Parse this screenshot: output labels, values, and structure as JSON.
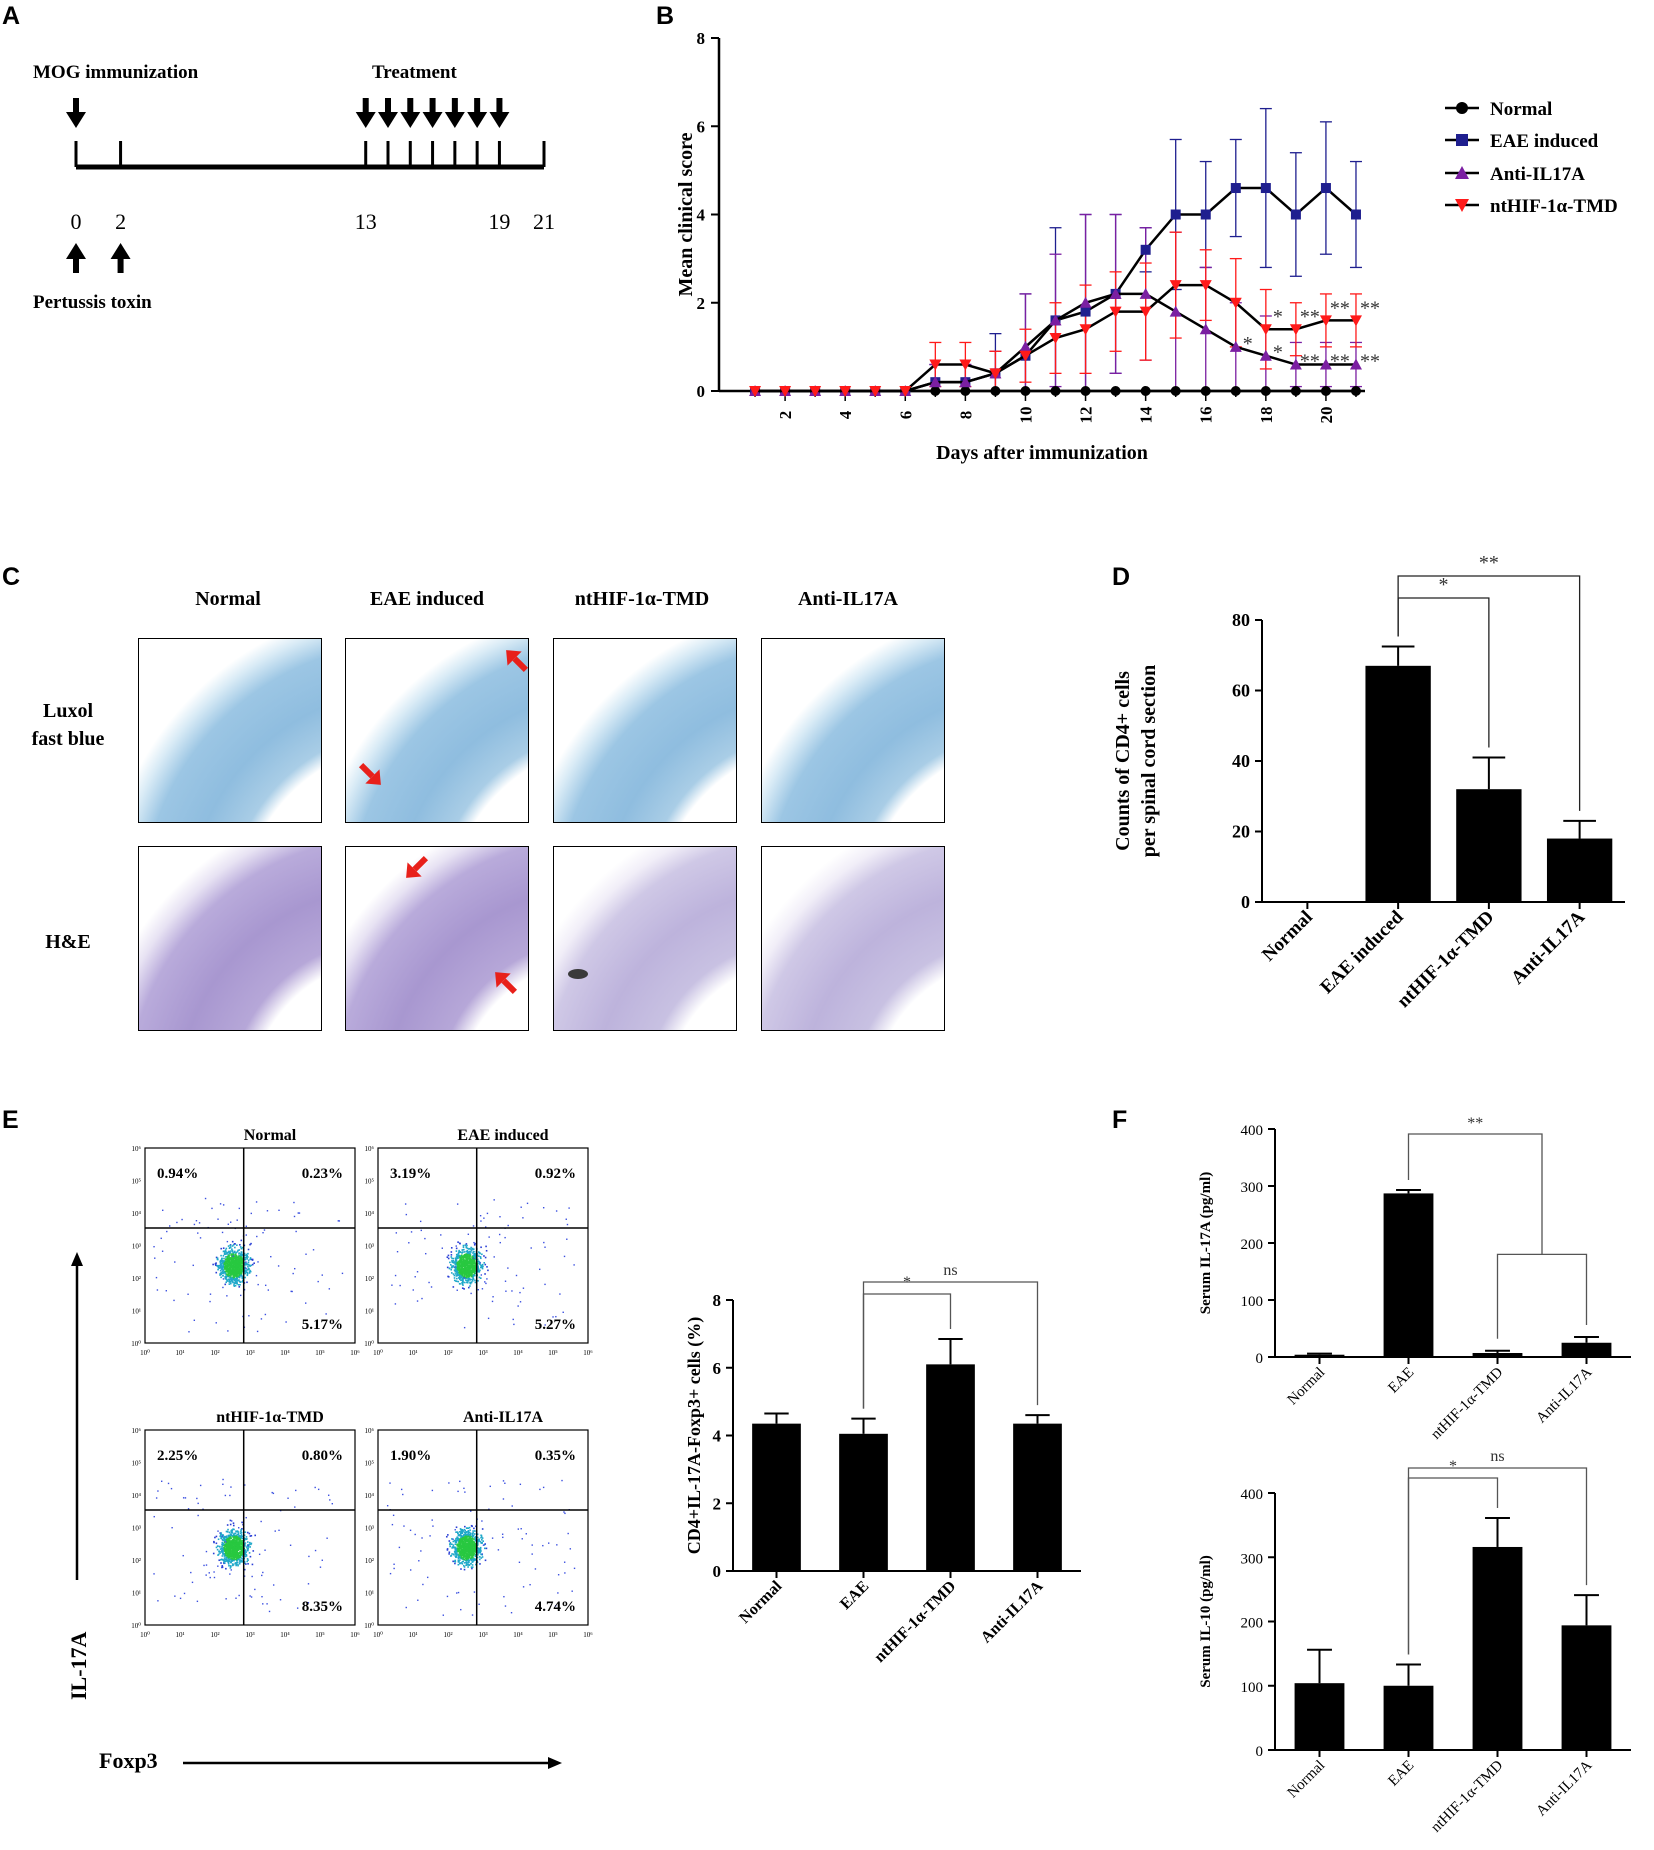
{
  "panel_labels": {
    "a": "A",
    "b": "B",
    "c": "C",
    "d": "D",
    "e": "E",
    "f": "F"
  },
  "timeline": {
    "mog_label": "MOG immunization",
    "treatment_label": "Treatment",
    "pertussis_label": "Pertussis toxin",
    "day_labels": [
      "0",
      "2",
      "13",
      "19",
      "21"
    ],
    "treatment_days": [
      13,
      14,
      15,
      16,
      17,
      18,
      19
    ],
    "pertussis_days": [
      0,
      2
    ]
  },
  "histology": {
    "columns": [
      "Normal",
      "EAE induced",
      "ntHIF-1α-TMD",
      "Anti-IL17A"
    ],
    "rows": [
      {
        "label_line1": "Luxol",
        "label_line2": "fast blue"
      },
      {
        "label_line1": "H&E",
        "label_line2": ""
      }
    ]
  },
  "flow": {
    "y_axis_label": "IL-17A",
    "x_axis_label": "Foxp3",
    "tick_labels": [
      "10⁰",
      "10¹",
      "10²",
      "10³",
      "10⁴",
      "10⁵",
      "10⁶"
    ],
    "plots": [
      {
        "title": "Normal",
        "ul": "0.94%",
        "ur": "0.23%",
        "lr": "5.17%"
      },
      {
        "title": "EAE induced",
        "ul": "3.19%",
        "ur": "0.92%",
        "lr": "5.27%"
      },
      {
        "title": "ntHIF-1α-TMD",
        "ul": "2.25%",
        "ur": "0.80%",
        "lr": "8.35%"
      },
      {
        "title": "Anti-IL17A",
        "ul": "1.90%",
        "ur": "0.35%",
        "lr": "4.74%"
      }
    ]
  },
  "colors": {
    "normal": "#000000",
    "eae": "#1f1f8f",
    "anti": "#7b1fa2",
    "nthif": "#ff1a1a"
  },
  "chart_data": [
    {
      "id": "B",
      "type": "line",
      "xlabel": "Days after immunization",
      "ylabel": "Mean clinical score",
      "ylim": [
        0,
        8
      ],
      "xlim": [
        0,
        21
      ],
      "x_ticks": [
        2,
        4,
        6,
        8,
        10,
        12,
        14,
        16,
        18,
        20
      ],
      "y_ticks": [
        0,
        2,
        4,
        6,
        8
      ],
      "x": [
        1,
        2,
        3,
        4,
        5,
        6,
        7,
        8,
        9,
        10,
        11,
        12,
        13,
        14,
        15,
        16,
        17,
        18,
        19,
        20,
        21
      ],
      "series": [
        {
          "name": "Normal",
          "marker": "circle",
          "values": [
            0,
            0,
            0,
            0,
            0,
            0,
            0,
            0,
            0,
            0,
            0,
            0,
            0,
            0,
            0,
            0,
            0,
            0,
            0,
            0,
            0
          ],
          "errors": [
            0,
            0,
            0,
            0,
            0,
            0,
            0,
            0,
            0,
            0,
            0,
            0,
            0,
            0,
            0,
            0,
            0,
            0,
            0,
            0,
            0
          ]
        },
        {
          "name": "EAE induced",
          "marker": "square",
          "values": [
            0,
            0,
            0,
            0,
            0,
            0,
            0.2,
            0.2,
            0.4,
            0.8,
            1.6,
            1.8,
            2.2,
            3.2,
            4.0,
            4.0,
            4.6,
            4.6,
            4.0,
            4.6,
            4.0
          ],
          "errors": [
            0,
            0,
            0,
            0,
            0,
            0,
            0.4,
            0.4,
            0.9,
            1.4,
            2.1,
            2.2,
            1.8,
            0.5,
            1.7,
            1.2,
            1.1,
            1.8,
            1.4,
            1.5,
            1.2
          ]
        },
        {
          "name": "Anti-IL17A",
          "marker": "triangle-up",
          "values": [
            0,
            0,
            0,
            0,
            0,
            0,
            0.2,
            0.2,
            0.4,
            1.0,
            1.6,
            2.0,
            2.2,
            2.2,
            1.8,
            1.4,
            1.0,
            0.8,
            0.6,
            0.6,
            0.6
          ],
          "errors": [
            0,
            0,
            0,
            0,
            0,
            0,
            0.4,
            0.4,
            0.5,
            1.2,
            1.5,
            2.0,
            1.8,
            1.5,
            1.8,
            1.4,
            1.0,
            0.9,
            0.5,
            0.5,
            0.5
          ]
        },
        {
          "name": "ntHIF-1α-TMD",
          "marker": "triangle-down",
          "values": [
            0,
            0,
            0,
            0,
            0,
            0,
            0.6,
            0.6,
            0.4,
            0.8,
            1.2,
            1.4,
            1.8,
            1.8,
            2.4,
            2.4,
            2.0,
            1.4,
            1.4,
            1.6,
            1.6
          ],
          "errors": [
            0,
            0,
            0,
            0,
            0,
            0,
            0.5,
            0.5,
            0.5,
            0.6,
            0.8,
            1.0,
            0.9,
            1.1,
            1.2,
            0.8,
            1.0,
            0.9,
            0.6,
            0.6,
            0.6
          ]
        }
      ],
      "annotations": [
        {
          "day": 17,
          "series": "Anti-IL17A",
          "text": "*"
        },
        {
          "day": 18,
          "series": "Anti-IL17A",
          "text": "*"
        },
        {
          "day": 19,
          "series": "Anti-IL17A",
          "text": "**"
        },
        {
          "day": 20,
          "series": "Anti-IL17A",
          "text": "**"
        },
        {
          "day": 21,
          "series": "Anti-IL17A",
          "text": "**"
        },
        {
          "day": 18,
          "series": "ntHIF-1α-TMD",
          "text": "*"
        },
        {
          "day": 19,
          "series": "ntHIF-1α-TMD",
          "text": "**"
        },
        {
          "day": 20,
          "series": "ntHIF-1α-TMD",
          "text": "**"
        },
        {
          "day": 21,
          "series": "ntHIF-1α-TMD",
          "text": "**"
        }
      ],
      "legend_position": "right"
    },
    {
      "id": "D",
      "type": "bar",
      "ylabel_line1": "Counts of CD4+ cells",
      "ylabel_line2": "per spinal cord section",
      "categories": [
        "Normal",
        "EAE induced",
        "ntHIF-1α-TMD",
        "Anti-IL17A"
      ],
      "values": [
        0,
        67,
        32,
        18
      ],
      "errors": [
        0,
        5.5,
        9,
        5
      ],
      "ylim": [
        0,
        80
      ],
      "y_ticks": [
        0,
        20,
        40,
        60,
        80
      ],
      "significance": [
        {
          "from": 1,
          "to": 2,
          "text": "*"
        },
        {
          "from": 1,
          "to": 3,
          "text": "**"
        }
      ]
    },
    {
      "id": "E-bar",
      "type": "bar",
      "ylabel": "CD4+IL-17A-Foxp3+ cells (%)",
      "categories": [
        "Normal",
        "EAE",
        "ntHIF-1α-TMD",
        "Anti-IL17A"
      ],
      "values": [
        4.35,
        4.05,
        6.1,
        4.35
      ],
      "errors": [
        0.3,
        0.45,
        0.75,
        0.25
      ],
      "ylim": [
        0,
        8
      ],
      "y_ticks": [
        0,
        2,
        4,
        6,
        8
      ],
      "significance": [
        {
          "from": 1,
          "to": 2,
          "text": "*"
        },
        {
          "from": 1,
          "to": 3,
          "text": "ns"
        }
      ]
    },
    {
      "id": "F-top",
      "type": "bar",
      "ylabel": "Serum IL-17A (pg/ml)",
      "categories": [
        "Normal",
        "EAE",
        "ntHIF-1α-TMD",
        "Anti-IL17A"
      ],
      "values": [
        4,
        287,
        7,
        25
      ],
      "errors": [
        2,
        6,
        4,
        10
      ],
      "ylim": [
        0,
        400
      ],
      "y_ticks": [
        0,
        100,
        200,
        300,
        400
      ],
      "significance": [
        {
          "from": 1,
          "to": "2-3",
          "text": "**"
        }
      ]
    },
    {
      "id": "F-bottom",
      "type": "bar",
      "ylabel": "Serum IL-10 (pg/ml)",
      "categories": [
        "Normal",
        "EAE",
        "ntHIF-1α-TMD",
        "Anti-IL17A"
      ],
      "values": [
        104,
        100,
        316,
        194
      ],
      "errors": [
        52,
        33,
        45,
        47
      ],
      "ylim": [
        0,
        400
      ],
      "y_ticks": [
        0,
        100,
        200,
        300,
        400
      ],
      "significance": [
        {
          "from": 1,
          "to": 2,
          "text": "*"
        },
        {
          "from": 1,
          "to": 3,
          "text": "ns"
        }
      ]
    }
  ]
}
